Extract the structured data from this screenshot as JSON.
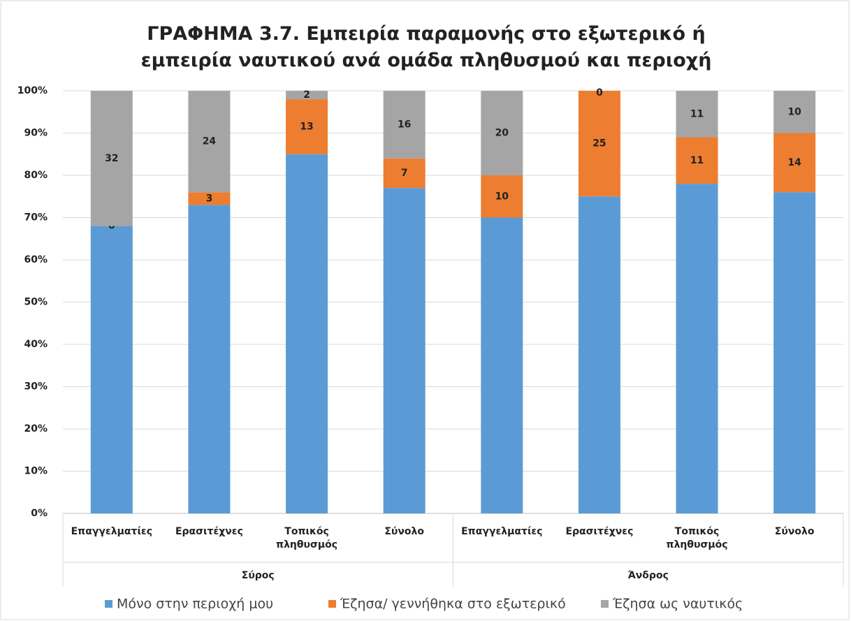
{
  "chart_data": {
    "type": "stacked_bar_100",
    "title": "ΓΡΑΦΗΜΑ 3.7. Εμπειρία παραμονής στο εξωτερικό ή εμπειρία ναυτικού ανά ομάδα πληθυσμού και περιοχή",
    "groups": [
      {
        "name": "Σύρος",
        "categories": [
          "Επαγγελματίες",
          "Ερασιτέχνες",
          "Τοπικός πληθυσμός",
          "Σύνολο"
        ]
      },
      {
        "name": "Άνδρος",
        "categories": [
          "Επαγγελματίες",
          "Ερασιτέχνες",
          "Τοπικός πληθυσμός",
          "Σύνολο"
        ]
      }
    ],
    "series": [
      {
        "name": "Μόνο στην περιοχή μου",
        "color": "#5b9bd5",
        "show_labels": false,
        "values": [
          68,
          73,
          85,
          77,
          70,
          75,
          78,
          76
        ]
      },
      {
        "name": "Έζησα/ γεννήθηκα στο εξωτερικό",
        "color": "#ed7d31",
        "show_labels": true,
        "values": [
          0,
          3,
          13,
          7,
          10,
          25,
          11,
          14
        ]
      },
      {
        "name": "Έζησα ως ναυτικός",
        "color": "#a5a5a5",
        "show_labels": true,
        "values": [
          32,
          24,
          2,
          16,
          20,
          0,
          11,
          10
        ]
      }
    ],
    "ylim": [
      0,
      100
    ],
    "yticks": [
      {
        "value": 0,
        "label": "0%"
      },
      {
        "value": 10,
        "label": "10%"
      },
      {
        "value": 20,
        "label": "20%"
      },
      {
        "value": 30,
        "label": "30%"
      },
      {
        "value": 40,
        "label": "40%"
      },
      {
        "value": 50,
        "label": "50%"
      },
      {
        "value": 60,
        "label": "60%"
      },
      {
        "value": 70,
        "label": "70%"
      },
      {
        "value": 80,
        "label": "80%"
      },
      {
        "value": 90,
        "label": "90%"
      },
      {
        "value": 100,
        "label": "100%"
      }
    ],
    "grid": true,
    "legend": "bottom"
  }
}
